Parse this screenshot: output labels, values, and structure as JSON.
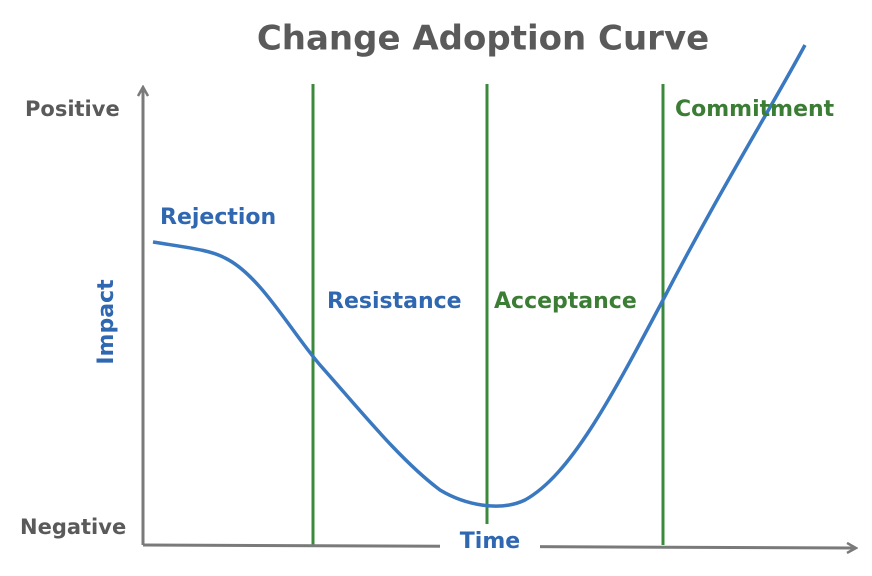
{
  "title": "Change Adoption Curve",
  "axes": {
    "y_top": "Positive",
    "y_bottom": "Negative",
    "y_label": "Impact",
    "x_label": "Time"
  },
  "stages": [
    "Rejection",
    "Resistance",
    "Acceptance",
    "Commitment"
  ]
}
